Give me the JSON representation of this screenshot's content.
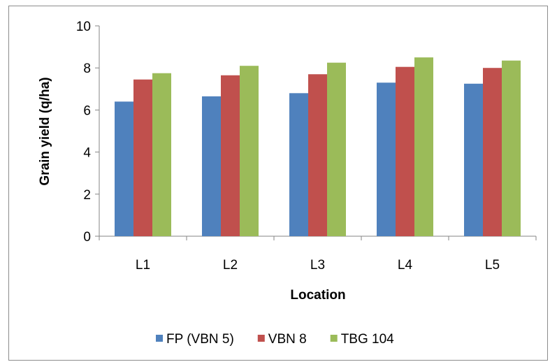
{
  "chart_data": {
    "type": "bar",
    "title": "",
    "xlabel": "Location",
    "ylabel": "Grain yield (q/ha)",
    "categories": [
      "L1",
      "L2",
      "L3",
      "L4",
      "L5"
    ],
    "ylim": [
      0,
      10
    ],
    "yticks": [
      0,
      2,
      4,
      6,
      8,
      10
    ],
    "grid": false,
    "legend_position": "bottom",
    "series": [
      {
        "name": "FP (VBN 5)",
        "color": "#4f81bd",
        "values": [
          6.4,
          6.65,
          6.8,
          7.3,
          7.25
        ]
      },
      {
        "name": "VBN 8",
        "color": "#c0504d",
        "values": [
          7.45,
          7.65,
          7.7,
          8.05,
          8.0
        ]
      },
      {
        "name": "TBG 104",
        "color": "#9bbb59",
        "values": [
          7.75,
          8.1,
          8.25,
          8.5,
          8.35
        ]
      }
    ]
  }
}
